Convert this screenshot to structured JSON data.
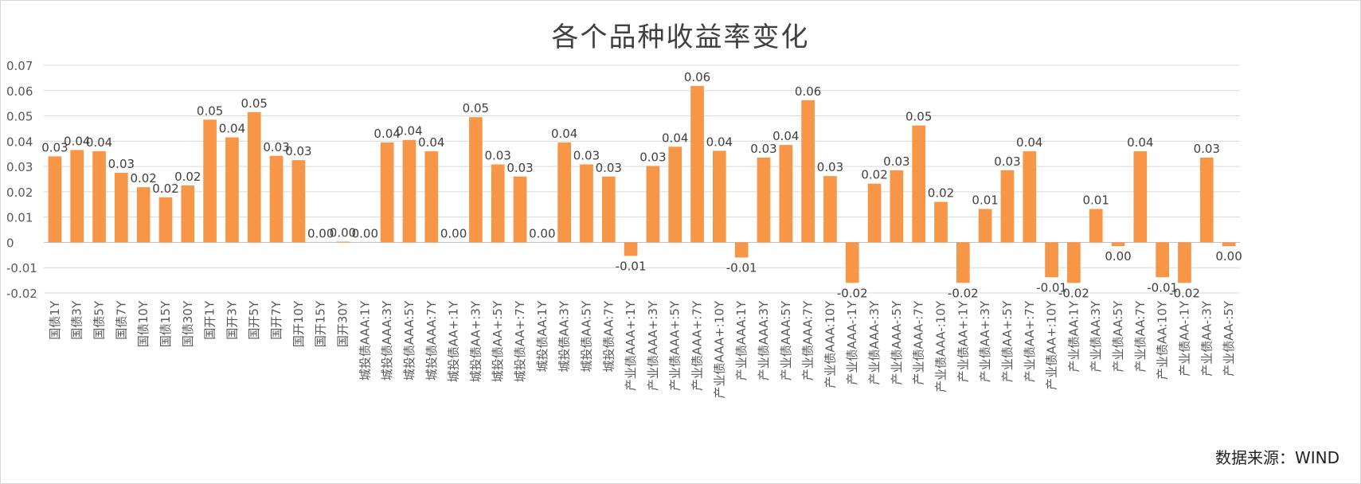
{
  "chart_data": {
    "type": "bar",
    "title": "各个品种收益率变化",
    "source": "数据来源：WIND",
    "bar_color": "#F79646",
    "ylim": [
      -0.02,
      0.07
    ],
    "yticks": [
      -0.02,
      -0.01,
      0,
      0.01,
      0.02,
      0.03,
      0.04,
      0.05,
      0.06,
      0.07
    ],
    "ytick_labels": [
      "-0.02",
      "-0.01",
      "0",
      "0.01",
      "0.02",
      "0.03",
      "0.04",
      "0.05",
      "0.06",
      "0.07"
    ],
    "grid": true,
    "categories": [
      "国债1Y",
      "国债3Y",
      "国债5Y",
      "国债7Y",
      "国债10Y",
      "国债15Y",
      "国债30Y",
      "国开1Y",
      "国开3Y",
      "国开5Y",
      "国开7Y",
      "国开10Y",
      "国开15Y",
      "国开30Y",
      "城投债AAA:1Y",
      "城投债AAA:3Y",
      "城投债AAA:5Y",
      "城投债AAA:7Y",
      "城投债AA+:1Y",
      "城投债AA+:3Y",
      "城投债AA+:5Y",
      "城投债AA+:7Y",
      "城投债AA:1Y",
      "城投债AA:3Y",
      "城投债AA:5Y",
      "城投债AA:7Y",
      "产业债AAA+:1Y",
      "产业债AAA+:3Y",
      "产业债AAA+:5Y",
      "产业债AAA+:7Y",
      "产业债AAA+:10Y",
      "产业债AAA:1Y",
      "产业债AAA:3Y",
      "产业债AAA:5Y",
      "产业债AAA:7Y",
      "产业债AAA:10Y",
      "产业债AAA-:1Y",
      "产业债AAA-:3Y",
      "产业债AAA-:5Y",
      "产业债AAA-:7Y",
      "产业债AAA-:10Y",
      "产业债AA+:1Y",
      "产业债AA+:3Y",
      "产业债AA+:5Y",
      "产业债AA+:7Y",
      "产业债AA+:10Y",
      "产业债AA:1Y",
      "产业债AA:3Y",
      "产业债AA:5Y",
      "产业债AA:7Y",
      "产业债AA:10Y",
      "产业债AA-:1Y",
      "产业债AA-:3Y",
      "产业债AA-:5Y"
    ],
    "values": [
      0.034,
      0.0365,
      0.036,
      0.0275,
      0.0218,
      0.0178,
      0.0225,
      0.0485,
      0.0415,
      0.0515,
      0.0342,
      0.0325,
      0.0,
      0.0003,
      0.0,
      0.0395,
      0.0405,
      0.036,
      0.0,
      0.0495,
      0.0308,
      0.026,
      0.0,
      0.0395,
      0.0308,
      0.026,
      -0.0053,
      0.0302,
      0.0378,
      0.0618,
      0.0362,
      -0.006,
      0.0335,
      0.0385,
      0.0562,
      0.0262,
      -0.016,
      0.0232,
      0.0285,
      0.0462,
      0.016,
      -0.016,
      0.0132,
      0.0285,
      0.036,
      -0.0138,
      -0.016,
      0.0132,
      -0.0015,
      0.036,
      -0.0138,
      -0.016,
      0.0335,
      -0.0015
    ],
    "data_labels": [
      "0.03",
      "0.04",
      "0.04",
      "0.03",
      "0.02",
      "0.02",
      "0.02",
      "0.05",
      "0.04",
      "0.05",
      "0.03",
      "0.03",
      "0.00",
      "0.00",
      "0.00",
      "0.04",
      "0.04",
      "0.04",
      "0.00",
      "0.05",
      "0.03",
      "0.03",
      "0.00",
      "0.04",
      "0.03",
      "0.03",
      "-0.01",
      "0.03",
      "0.04",
      "0.06",
      "0.04",
      "-0.01",
      "0.03",
      "0.04",
      "0.06",
      "0.03",
      "-0.02",
      "0.02",
      "0.03",
      "0.05",
      "0.02",
      "-0.02",
      "0.01",
      "0.03",
      "0.04",
      "-0.01",
      "-0.02",
      "0.01",
      "0.00",
      "0.04",
      "-0.01",
      "-0.02",
      "0.03",
      "0.00"
    ]
  }
}
